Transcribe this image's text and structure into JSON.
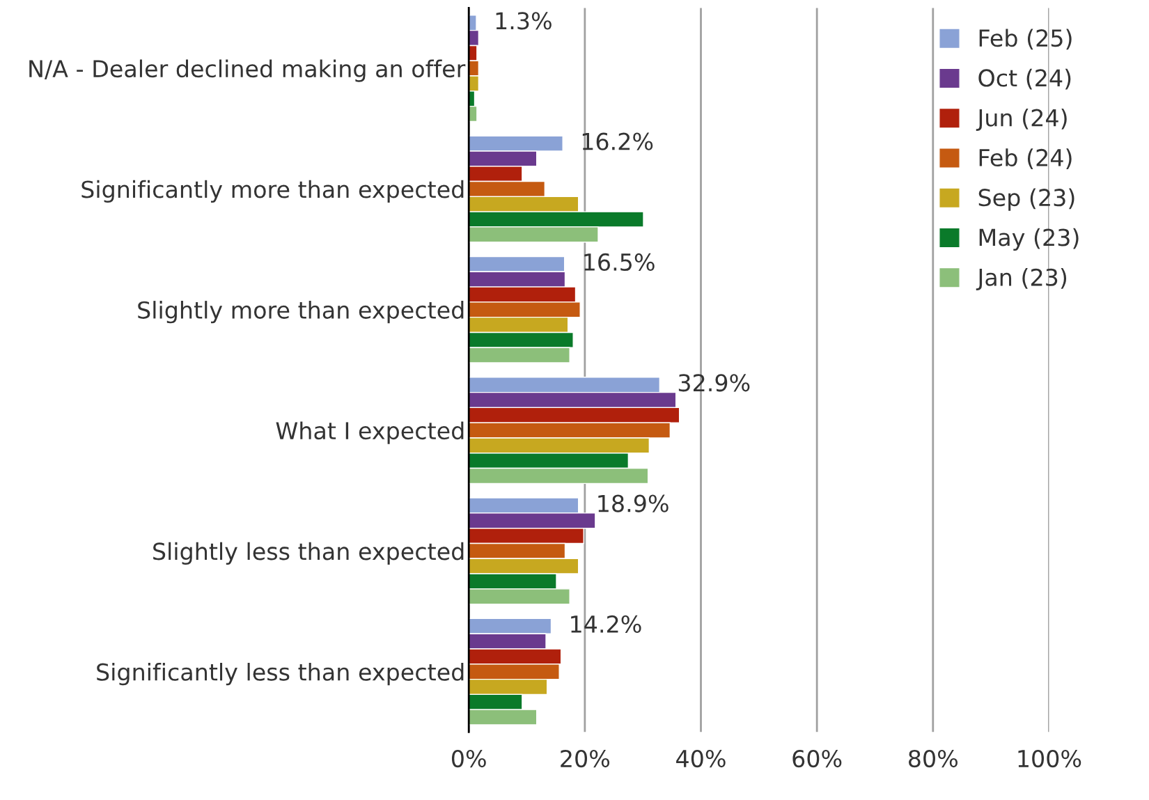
{
  "chart_data": {
    "type": "bar",
    "orientation": "horizontal",
    "categories": [
      "N/A - Dealer declined making an offer",
      "Significantly more than expected",
      "Slightly more than expected",
      "What I expected",
      "Slightly less than expected",
      "Significantly less than expected"
    ],
    "series": [
      {
        "name": "Feb (25)",
        "color": "#8aa2d6",
        "values": [
          1.3,
          16.2,
          16.5,
          32.9,
          18.9,
          14.2
        ],
        "value_labels": [
          "1.3%",
          "16.2%",
          "16.5%",
          "32.9%",
          "18.9%",
          "14.2%"
        ]
      },
      {
        "name": "Oct (24)",
        "color": "#6a3a8e",
        "values": [
          1.7,
          11.7,
          16.6,
          35.7,
          21.8,
          13.3
        ]
      },
      {
        "name": "Jun (24)",
        "color": "#b0200c",
        "values": [
          1.4,
          9.2,
          18.4,
          36.3,
          19.8,
          15.9
        ]
      },
      {
        "name": "Feb (24)",
        "color": "#c55a11",
        "values": [
          1.7,
          13.1,
          19.2,
          34.7,
          16.6,
          15.6
        ]
      },
      {
        "name": "Sep (23)",
        "color": "#c7a820",
        "values": [
          1.7,
          18.9,
          17.1,
          31.1,
          18.9,
          13.5
        ]
      },
      {
        "name": "May (23)",
        "color": "#0a7a2a",
        "values": [
          1.0,
          30.1,
          18.0,
          27.5,
          15.1,
          9.2
        ]
      },
      {
        "name": "Jan (23)",
        "color": "#8cbf7a",
        "values": [
          1.4,
          22.3,
          17.4,
          30.9,
          17.4,
          11.7
        ]
      }
    ],
    "xlim": [
      0,
      100
    ],
    "xticks": [
      {
        "value": 0,
        "label": "0%"
      },
      {
        "value": 20,
        "label": "20%"
      },
      {
        "value": 40,
        "label": "40%"
      },
      {
        "value": 60,
        "label": "60%"
      },
      {
        "value": 80,
        "label": "80%"
      },
      {
        "value": 100,
        "label": "100%"
      }
    ],
    "grid": "x",
    "legend": "top right"
  }
}
